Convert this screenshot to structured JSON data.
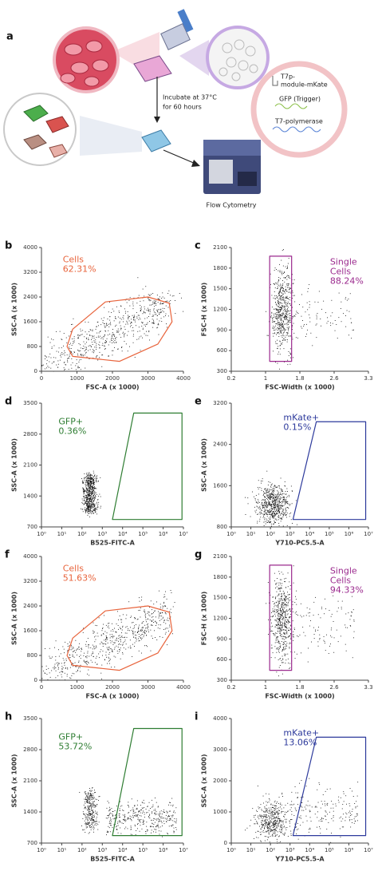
{
  "figure_label": "a",
  "schematic": {
    "incubation": [
      "Incubate at 37°C",
      "for 60 hours"
    ],
    "plasmid_parts": [
      "T7p-",
      "module-mKate",
      "GFP (Trigger)",
      "T7-polymerase"
    ],
    "instrument": "Flow Cytometry"
  },
  "panels": [
    {
      "letter": "b",
      "gate_label": [
        "Cells"
      ],
      "gate_percent": "62.31%",
      "gate_color": "#e8643c",
      "x_label": "FSC-A (x 1000)",
      "y_label": "SSC-A (x 1000)",
      "x_ticks": [
        0,
        1000,
        2000,
        3000,
        4000
      ],
      "y_ticks": [
        0,
        800,
        1600,
        2400,
        3200,
        4000
      ]
    },
    {
      "letter": "c",
      "gate_label": [
        "Single",
        "Cells"
      ],
      "gate_percent": "88.24%",
      "gate_color": "#9b2a8e",
      "x_label": "FSC-Width (x 1000)",
      "y_label": "FSC-H (x 1000)",
      "x_ticks": [
        0.2,
        1,
        1.8,
        2.6,
        3.3
      ],
      "y_ticks": [
        300,
        600,
        900,
        1200,
        1500,
        1800,
        2100
      ]
    },
    {
      "letter": "d",
      "gate_label": [
        "GFP+"
      ],
      "gate_percent": "0.36%",
      "gate_color": "#2e7d32",
      "x_label": "B525-FITC-A",
      "y_label": "SSC-A (x 1000)",
      "x_ticks": [
        "10⁰",
        "10¹",
        "10²",
        "10³",
        "10⁴",
        "10⁵",
        "10⁶",
        "10⁷"
      ],
      "y_ticks": [
        700,
        1400,
        2100,
        2800,
        3500
      ]
    },
    {
      "letter": "e",
      "gate_label": [
        "mKate+"
      ],
      "gate_percent": "0.15%",
      "gate_color": "#2d3a9c",
      "x_label": "Y710-PC5.5-A",
      "y_label": "SSC-A (x 1000)",
      "x_ticks": [
        "10⁰",
        "10¹",
        "10²",
        "10³",
        "10⁴",
        "10⁵",
        "10⁶",
        "10⁷"
      ],
      "y_ticks": [
        800,
        1600,
        2400,
        3200
      ]
    },
    {
      "letter": "f",
      "gate_label": [
        "Cells"
      ],
      "gate_percent": "51.63%",
      "gate_color": "#e8643c",
      "x_label": "FSC-A (x 1000)",
      "y_label": "SSC-A (x 1000)",
      "x_ticks": [
        0,
        1000,
        2000,
        3000,
        4000
      ],
      "y_ticks": [
        0,
        800,
        1600,
        2400,
        3200,
        4000
      ]
    },
    {
      "letter": "g",
      "gate_label": [
        "Single",
        "Cells"
      ],
      "gate_percent": "94.33%",
      "gate_color": "#9b2a8e",
      "x_label": "FSC-Width (x 1000)",
      "y_label": "FSC-H (x 1000)",
      "x_ticks": [
        0.2,
        1,
        1.8,
        2.6,
        3.3
      ],
      "y_ticks": [
        300,
        600,
        900,
        1200,
        1500,
        1800,
        2100
      ]
    },
    {
      "letter": "h",
      "gate_label": [
        "GFP+"
      ],
      "gate_percent": "53.72%",
      "gate_color": "#2e7d32",
      "x_label": "B525-FITC-A",
      "y_label": "SSC-A (x 1000)",
      "x_ticks": [
        "10⁰",
        "10¹",
        "10²",
        "10³",
        "10⁴",
        "10⁵",
        "10⁶",
        "10⁷"
      ],
      "y_ticks": [
        700,
        1400,
        2100,
        2800,
        3500
      ]
    },
    {
      "letter": "i",
      "gate_label": [
        "mKate+"
      ],
      "gate_percent": "13.06%",
      "gate_color": "#2d3a9c",
      "x_label": "Y710-PC5.5-A",
      "y_label": "SSC-A (x 1000)",
      "x_ticks": [
        "10⁰",
        "10¹",
        "10²",
        "10³",
        "10⁴",
        "10⁵",
        "10⁶",
        "10⁷"
      ],
      "y_ticks": [
        0,
        1000,
        2000,
        3000,
        4000
      ]
    }
  ]
}
